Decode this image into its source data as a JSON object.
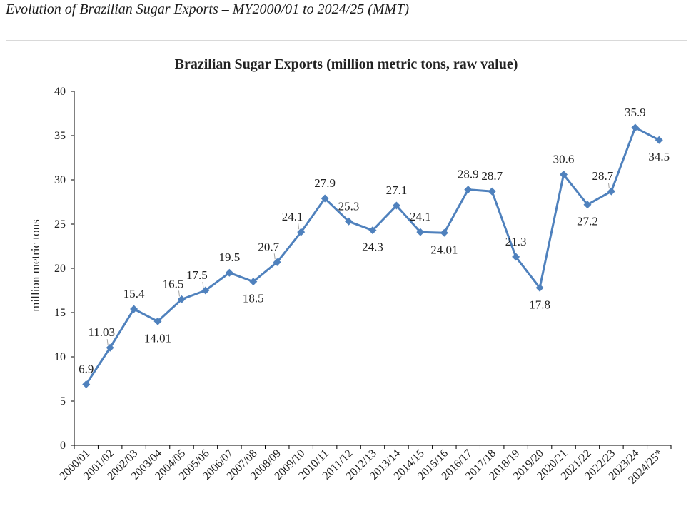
{
  "caption": "Evolution of Brazilian Sugar Exports – MY2000/01 to 2024/25 (MMT)",
  "chart_data": {
    "type": "line",
    "title": "Brazilian Sugar Exports (million metric tons, raw value)",
    "xlabel": "",
    "ylabel": "million metric tons",
    "ylim": [
      0,
      40
    ],
    "yticks": [
      0,
      5,
      10,
      15,
      20,
      25,
      30,
      35,
      40
    ],
    "grid": false,
    "legend": "none",
    "categories": [
      "2000/01",
      "2001/02",
      "2002/03",
      "2003/04",
      "2004/05",
      "2005/06",
      "2006/07",
      "2007/08",
      "2008/09",
      "2009/10",
      "2010/11",
      "2011/12",
      "2012/13",
      "2013/14",
      "2014/15",
      "2015/16",
      "2016/17",
      "2017/18",
      "2018/19",
      "2019/20",
      "2020/21",
      "2021/22",
      "2022/23",
      "2023/24",
      "2024/25*"
    ],
    "series": [
      {
        "values": [
          6.9,
          11.03,
          15.4,
          14.01,
          16.5,
          17.5,
          19.5,
          18.5,
          20.7,
          24.1,
          27.9,
          25.3,
          24.3,
          27.1,
          24.1,
          24.01,
          28.9,
          28.7,
          21.3,
          17.8,
          30.6,
          27.2,
          28.7,
          35.9,
          34.5
        ],
        "labels": [
          "6.9",
          "11.03",
          "15.4",
          "14.01",
          "16.5",
          "17.5",
          "19.5",
          "18.5",
          "20.7",
          "24.1",
          "27.9",
          "25.3",
          "24.3",
          "27.1",
          "24.1",
          "24.01",
          "28.9",
          "28.7",
          "21.3",
          "17.8",
          "30.6",
          "27.2",
          "28.7",
          "35.9",
          "34.5"
        ]
      }
    ],
    "colors": {
      "line": "#4f81bd",
      "marker": "#4f81bd",
      "axis": "#000000",
      "leader": "#a6a6a6"
    }
  }
}
